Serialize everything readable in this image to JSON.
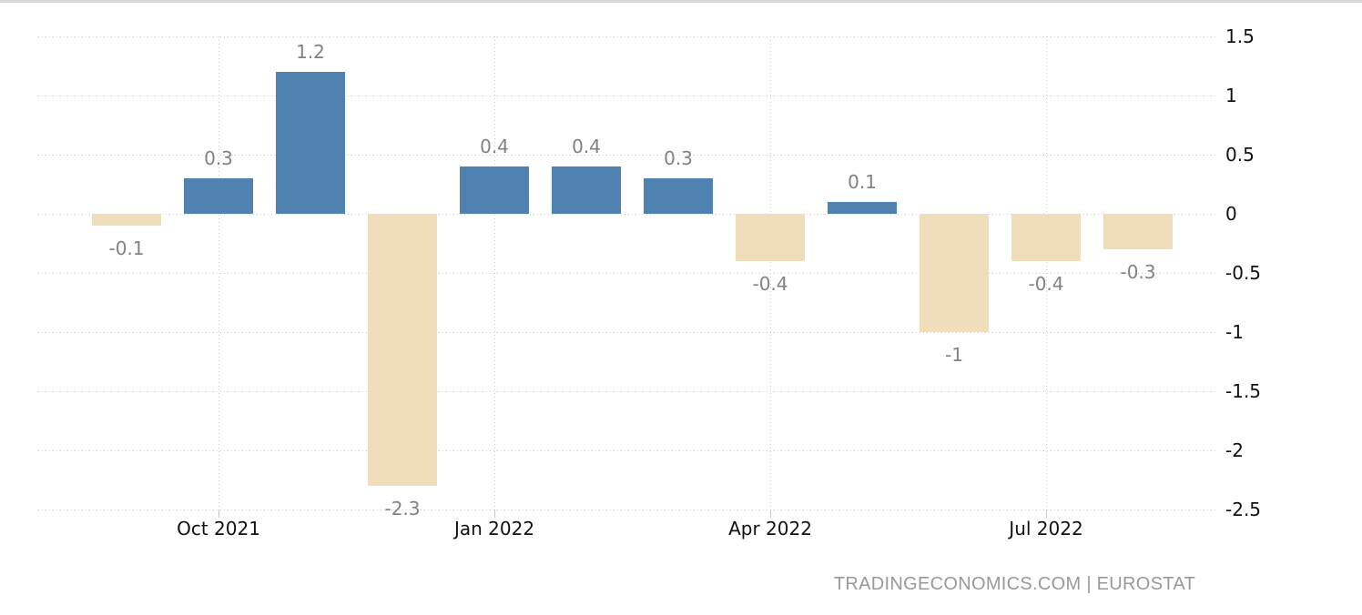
{
  "chart_data": {
    "type": "bar",
    "values": [
      -0.1,
      0.3,
      1.2,
      -2.3,
      0.4,
      0.4,
      0.3,
      -0.4,
      0.1,
      -1,
      -0.4,
      -0.3
    ],
    "bar_labels": [
      "-0.1",
      "0.3",
      "1.2",
      "-2.3",
      "0.4",
      "0.4",
      "0.3",
      "-0.4",
      "0.1",
      "-1",
      "-0.4",
      "-0.3"
    ],
    "x_tick_labels": [
      "Oct 2021",
      "Jan 2022",
      "Apr 2022",
      "Jul 2022"
    ],
    "x_tick_bar_indices": [
      1,
      4,
      7,
      10
    ],
    "y_ticks": [
      1.5,
      1,
      0.5,
      0,
      -0.5,
      -1,
      -1.5,
      -2,
      -2.5
    ],
    "y_tick_labels": [
      "1.5",
      "1",
      "0.5",
      "0",
      "-0.5",
      "-1",
      "-1.5",
      "-2",
      "-2.5"
    ],
    "ylim": [
      -2.5,
      1.5
    ],
    "grid": "dotted",
    "legend": "none",
    "title": "",
    "xlabel": "",
    "ylabel": "",
    "colors": {
      "positive_bar": "#4f81b1",
      "negative_bar": "#f0deba",
      "value_label": "#808285",
      "axis_label": "#111111",
      "gridline": "#cccccc",
      "attribution_text": "#98999b",
      "top_border": "#d7d7d7"
    }
  },
  "footer": {
    "attribution": "TRADINGECONOMICS.COM | EUROSTAT"
  }
}
